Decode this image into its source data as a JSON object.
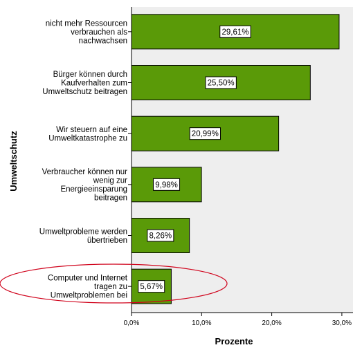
{
  "chart_data": {
    "type": "bar",
    "orientation": "horizontal",
    "categories": [
      [
        "nicht mehr Ressourcen",
        "verbrauchen als",
        "nachwachsen"
      ],
      [
        "Bürger können durch",
        "Kaufverhalten zum",
        "Umweltschutz beitragen"
      ],
      [
        "Wir steuern auf eine",
        "Umweltkatastrophe zu"
      ],
      [
        "Verbraucher können nur",
        "wenig zur",
        "Energieeinsparung",
        "beitragen"
      ],
      [
        "Umweltprobleme werden",
        "übertrieben"
      ],
      [
        "Computer und Internet",
        "tragen zu",
        "Umweltproblemen bei"
      ]
    ],
    "values": [
      29.61,
      25.5,
      20.99,
      9.98,
      8.26,
      5.67
    ],
    "data_labels": [
      "29,61%",
      "25,50%",
      "20,99%",
      "9,98%",
      "8,26%",
      "5,67%"
    ],
    "xlabel": "Prozente",
    "ylabel": "Umweltschutz",
    "xlim": [
      0,
      30
    ],
    "xticks": [
      0,
      10,
      20,
      30
    ],
    "xtick_labels": [
      "0,0%",
      "10,0%",
      "20,0%",
      "30,0%"
    ],
    "grid": false,
    "bar_color": "#5a9a08",
    "plot_background": "#eeeeee",
    "highlight": {
      "shape": "ellipse",
      "color": "#d0021b",
      "category_index": 5
    }
  }
}
